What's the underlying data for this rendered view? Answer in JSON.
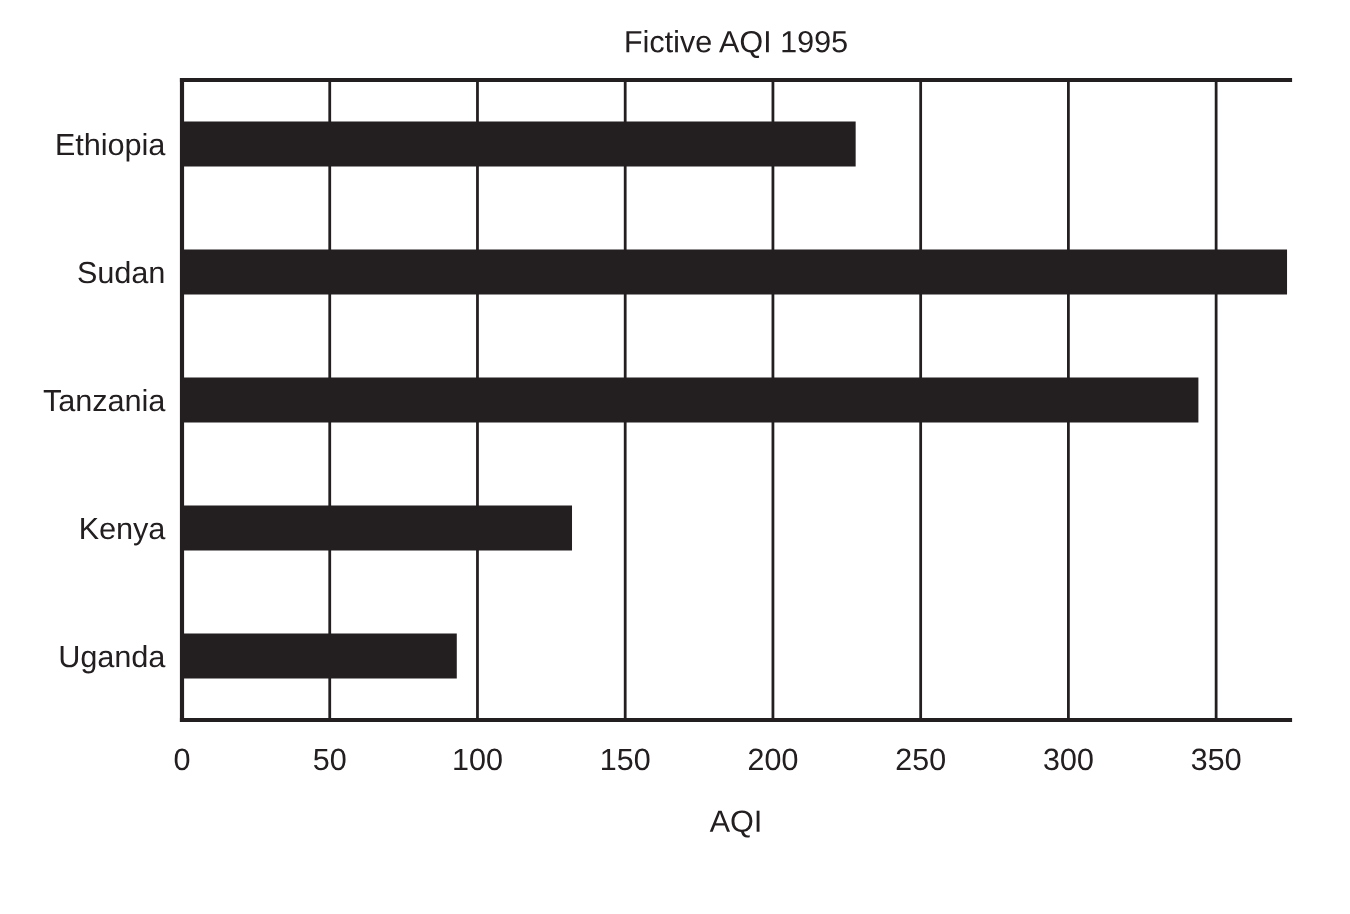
{
  "chart_data": {
    "type": "bar",
    "orientation": "horizontal",
    "title": "Fictive AQI 1995",
    "xlabel": "AQI",
    "categories": [
      "Ethiopia",
      "Sudan",
      "Tanzania",
      "Kenya",
      "Uganda"
    ],
    "values": [
      228,
      374,
      344,
      132,
      93
    ],
    "color": "#231f20",
    "xlim": [
      0,
      375
    ],
    "xticks": [
      0,
      50,
      100,
      150,
      200,
      250,
      300,
      350
    ],
    "grid": "x",
    "legend": false
  }
}
